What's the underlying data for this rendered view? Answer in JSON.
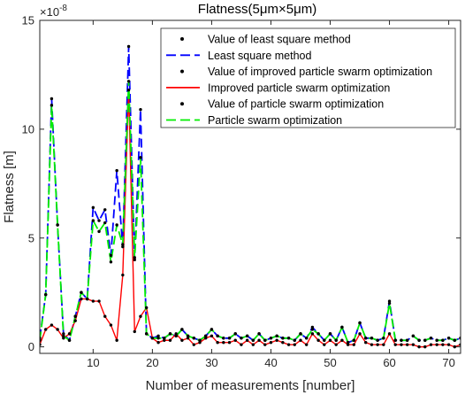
{
  "chart_data": {
    "type": "line",
    "title": "Flatness(5μm×5μm)",
    "xlabel": "Number of measurements [number]",
    "ylabel": "Flatness [m]",
    "y_exponent": "×10",
    "y_exponent_power": "-8",
    "xlim": [
      1,
      72
    ],
    "ylim": [
      -0.3,
      15
    ],
    "xticks": [
      10,
      20,
      30,
      40,
      50,
      60,
      70
    ],
    "yticks": [
      0,
      5,
      10,
      15
    ],
    "grid": false,
    "legend_position": "top-right",
    "x": [
      1,
      2,
      3,
      4,
      5,
      6,
      7,
      8,
      9,
      10,
      11,
      12,
      13,
      14,
      15,
      16,
      17,
      18,
      19,
      20,
      21,
      22,
      23,
      24,
      25,
      26,
      27,
      28,
      29,
      30,
      31,
      32,
      33,
      34,
      35,
      36,
      37,
      38,
      39,
      40,
      41,
      42,
      43,
      44,
      45,
      46,
      47,
      48,
      49,
      50,
      51,
      52,
      53,
      54,
      55,
      56,
      57,
      58,
      59,
      60,
      61,
      62,
      63,
      64,
      65,
      66,
      67,
      68,
      69,
      70,
      71,
      72
    ],
    "series": [
      {
        "name": "Least square method",
        "points_label": "Value of least square method",
        "color": "#0000ff",
        "dash": "dashed",
        "values": [
          0.4,
          2.4,
          11.4,
          5.6,
          0.6,
          0.3,
          1.4,
          2.5,
          2.2,
          6.4,
          5.8,
          6.3,
          4.2,
          8.1,
          4.6,
          13.8,
          4.0,
          10.9,
          0.6,
          0.4,
          0.5,
          0.4,
          0.6,
          0.5,
          0.8,
          0.5,
          0.4,
          0.3,
          0.5,
          0.8,
          0.5,
          0.4,
          0.4,
          0.6,
          0.4,
          0.5,
          0.3,
          0.6,
          0.3,
          0.4,
          0.5,
          0.4,
          0.4,
          0.3,
          0.6,
          0.4,
          0.9,
          0.6,
          0.3,
          0.6,
          0.3,
          0.9,
          0.2,
          0.3,
          1.1,
          0.4,
          0.4,
          0.3,
          0.4,
          2.1,
          0.3,
          0.3,
          0.3,
          0.5,
          0.3,
          0.3,
          0.4,
          0.3,
          0.3,
          0.4,
          0.3,
          0.4
        ]
      },
      {
        "name": "Improved particle swarm optimization",
        "points_label": "Value of improved particle swarm optimization",
        "color": "#ff0000",
        "dash": "solid",
        "values": [
          0.1,
          0.8,
          1.0,
          0.8,
          0.4,
          0.6,
          1.2,
          2.2,
          2.2,
          2.1,
          2.1,
          1.4,
          1.0,
          0.3,
          3.3,
          11.8,
          0.7,
          1.4,
          1.8,
          0.4,
          0.2,
          0.3,
          0.3,
          0.6,
          0.3,
          0.4,
          0.1,
          0.2,
          0.4,
          0.5,
          0.2,
          0.2,
          0.2,
          0.3,
          0.1,
          0.3,
          0.1,
          0.3,
          0.1,
          0.2,
          0.3,
          0.2,
          0.1,
          0.1,
          0.3,
          0.1,
          0.6,
          0.3,
          0.1,
          0.3,
          0.1,
          0.3,
          0.1,
          0.1,
          0.6,
          0.2,
          0.1,
          0.1,
          0.1,
          0.6,
          0.1,
          0.1,
          0.1,
          0.1,
          0.0,
          0.0,
          0.1,
          0.1,
          0.1,
          0.1,
          0.0,
          0.1
        ]
      },
      {
        "name": "Particle swarm optimization",
        "points_label": "Value of particle swarm optimization",
        "color": "#00ee00",
        "dash": "dashed",
        "values": [
          0.3,
          2.4,
          11.1,
          5.6,
          0.5,
          0.3,
          1.4,
          2.5,
          2.2,
          5.8,
          5.3,
          5.7,
          3.9,
          5.6,
          4.7,
          12.2,
          4.1,
          8.7,
          0.6,
          0.4,
          0.4,
          0.4,
          0.6,
          0.5,
          0.8,
          0.5,
          0.4,
          0.3,
          0.5,
          0.8,
          0.5,
          0.4,
          0.4,
          0.6,
          0.4,
          0.5,
          0.3,
          0.6,
          0.3,
          0.4,
          0.5,
          0.4,
          0.4,
          0.3,
          0.6,
          0.4,
          0.8,
          0.6,
          0.3,
          0.6,
          0.3,
          0.9,
          0.2,
          0.3,
          1.1,
          0.4,
          0.4,
          0.3,
          0.4,
          2.0,
          0.3,
          0.3,
          0.3,
          0.5,
          0.3,
          0.3,
          0.4,
          0.3,
          0.3,
          0.4,
          0.3,
          0.4
        ]
      }
    ],
    "legend": [
      {
        "label": "Value of least square method",
        "kind": "marker"
      },
      {
        "label": "Least square method",
        "kind": "line",
        "series": 0
      },
      {
        "label": "Value of improved particle swarm optimization",
        "kind": "marker"
      },
      {
        "label": "Improved particle swarm optimization",
        "kind": "line",
        "series": 1
      },
      {
        "label": "Value of particle swarm optimization",
        "kind": "marker"
      },
      {
        "label": "Particle swarm optimization",
        "kind": "line",
        "series": 2
      }
    ]
  }
}
